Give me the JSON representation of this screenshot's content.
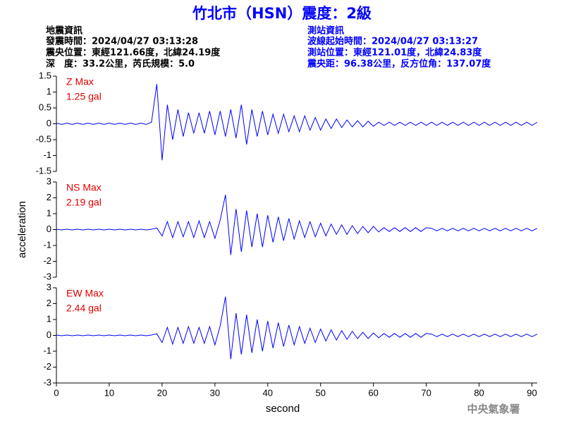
{
  "header": {
    "title": "竹北市（HSN）震度：2級",
    "left": [
      "地震資訊",
      "發震時間：2024/04/27 03:13:28",
      "震央位置：東經121.66度，北緯24.19度",
      "深　度：33.2公里，芮氏規模：5.0"
    ],
    "right": [
      "測站資訊",
      "波線起始時間：2024/04/27 03:13:27",
      "測站位置：東經121.01度，北緯24.83度",
      "震央距：96.38公里，反方位角：137.07度"
    ],
    "footer": "中央氣象署"
  },
  "chart_data": [
    {
      "type": "line",
      "annotation": [
        "Z Max",
        "1.25 gal"
      ],
      "color": "#0000ff",
      "x": [
        0,
        1,
        2,
        3,
        4,
        5,
        6,
        7,
        8,
        9,
        10,
        11,
        12,
        13,
        14,
        15,
        16,
        17,
        18,
        19,
        20,
        21,
        22,
        23,
        24,
        25,
        26,
        27,
        28,
        29,
        30,
        31,
        32,
        33,
        34,
        35,
        36,
        37,
        38,
        39,
        40,
        41,
        42,
        43,
        44,
        45,
        46,
        47,
        48,
        49,
        50,
        51,
        52,
        53,
        54,
        55,
        56,
        57,
        58,
        59,
        60,
        61,
        62,
        63,
        64,
        65,
        66,
        67,
        68,
        69,
        70,
        71,
        72,
        73,
        74,
        75,
        76,
        77,
        78,
        79,
        80,
        81,
        82,
        83,
        84,
        85,
        86,
        87,
        88,
        89,
        90,
        91
      ],
      "values": [
        0.02,
        -0.02,
        0.02,
        -0.02,
        0.02,
        -0.02,
        0.02,
        -0.02,
        0.02,
        -0.02,
        0.02,
        -0.02,
        0.02,
        -0.02,
        0.02,
        -0.02,
        0.02,
        -0.02,
        0.05,
        1.25,
        -1.15,
        0.6,
        -0.5,
        0.45,
        -0.4,
        0.35,
        -0.3,
        0.35,
        -0.3,
        0.4,
        -0.35,
        0.4,
        -0.4,
        0.45,
        -0.45,
        0.6,
        -0.65,
        0.45,
        -0.4,
        0.4,
        -0.35,
        0.3,
        -0.3,
        0.3,
        -0.25,
        0.25,
        -0.25,
        0.25,
        -0.2,
        0.2,
        -0.2,
        0.15,
        -0.15,
        0.15,
        -0.12,
        0.12,
        -0.1,
        0.1,
        -0.1,
        0.08,
        -0.08,
        0.05,
        -0.05,
        0.05,
        -0.05,
        0.05,
        -0.05,
        0.05,
        -0.05,
        0.05,
        -0.05,
        0.05,
        -0.05,
        0.05,
        -0.05,
        0.05,
        -0.05,
        0.05,
        -0.05,
        0.05,
        -0.05,
        0.05,
        -0.05,
        0.05,
        -0.05,
        0.05,
        -0.05,
        0.05,
        -0.05,
        0.05,
        -0.05,
        0.05
      ],
      "xlim": [
        0,
        91
      ],
      "ylim": [
        -1.5,
        1.5
      ],
      "yticks": [
        -1.5,
        -1,
        -0.5,
        0,
        0.5,
        1,
        1.5
      ]
    },
    {
      "type": "line",
      "annotation": [
        "NS Max",
        "2.19 gal"
      ],
      "color": "#0000ff",
      "ylabel": "acceleration",
      "x": [
        0,
        1,
        2,
        3,
        4,
        5,
        6,
        7,
        8,
        9,
        10,
        11,
        12,
        13,
        14,
        15,
        16,
        17,
        18,
        19,
        20,
        21,
        22,
        23,
        24,
        25,
        26,
        27,
        28,
        29,
        30,
        31,
        32,
        33,
        34,
        35,
        36,
        37,
        38,
        39,
        40,
        41,
        42,
        43,
        44,
        45,
        46,
        47,
        48,
        49,
        50,
        51,
        52,
        53,
        54,
        55,
        56,
        57,
        58,
        59,
        60,
        61,
        62,
        63,
        64,
        65,
        66,
        67,
        68,
        69,
        70,
        71,
        72,
        73,
        74,
        75,
        76,
        77,
        78,
        79,
        80,
        81,
        82,
        83,
        84,
        85,
        86,
        87,
        88,
        89,
        90,
        91
      ],
      "values": [
        0.02,
        -0.02,
        0.02,
        -0.02,
        0.02,
        -0.02,
        0.02,
        -0.02,
        0.02,
        -0.02,
        0.02,
        -0.02,
        0.02,
        -0.02,
        0.02,
        -0.02,
        0.02,
        -0.02,
        0.02,
        0.1,
        -0.4,
        0.5,
        -0.5,
        0.5,
        -0.45,
        0.5,
        -0.5,
        0.55,
        -0.5,
        0.5,
        -0.55,
        0.6,
        2.19,
        -1.6,
        1.3,
        -1.4,
        1.2,
        -1.1,
        1.0,
        -1.1,
        0.9,
        -0.8,
        0.8,
        -0.7,
        0.7,
        -0.6,
        0.55,
        -0.5,
        0.5,
        -0.45,
        0.4,
        -0.4,
        0.35,
        -0.3,
        0.3,
        -0.3,
        0.25,
        -0.25,
        0.2,
        -0.2,
        0.2,
        -0.15,
        0.12,
        -0.12,
        0.12,
        -0.12,
        0.12,
        -0.12,
        0.12,
        -0.12,
        0.12,
        0.08,
        -0.08,
        0.08,
        -0.08,
        0.08,
        -0.08,
        0.08,
        -0.08,
        0.08,
        -0.08,
        0.08,
        -0.08,
        0.08,
        -0.08,
        0.08,
        -0.08,
        0.08,
        -0.08,
        0.08,
        -0.08,
        0.08
      ],
      "xlim": [
        0,
        91
      ],
      "ylim": [
        -3,
        3
      ],
      "yticks": [
        -3,
        -2,
        -1,
        0,
        1,
        2,
        3
      ]
    },
    {
      "type": "line",
      "annotation": [
        "EW Max",
        "2.44 gal"
      ],
      "color": "#0000ff",
      "xlabel": "second",
      "x": [
        0,
        1,
        2,
        3,
        4,
        5,
        6,
        7,
        8,
        9,
        10,
        11,
        12,
        13,
        14,
        15,
        16,
        17,
        18,
        19,
        20,
        21,
        22,
        23,
        24,
        25,
        26,
        27,
        28,
        29,
        30,
        31,
        32,
        33,
        34,
        35,
        36,
        37,
        38,
        39,
        40,
        41,
        42,
        43,
        44,
        45,
        46,
        47,
        48,
        49,
        50,
        51,
        52,
        53,
        54,
        55,
        56,
        57,
        58,
        59,
        60,
        61,
        62,
        63,
        64,
        65,
        66,
        67,
        68,
        69,
        70,
        71,
        72,
        73,
        74,
        75,
        76,
        77,
        78,
        79,
        80,
        81,
        82,
        83,
        84,
        85,
        86,
        87,
        88,
        89,
        90,
        91
      ],
      "values": [
        0.02,
        -0.02,
        0.02,
        -0.02,
        0.02,
        -0.02,
        0.02,
        -0.02,
        0.02,
        -0.02,
        0.02,
        -0.02,
        0.02,
        -0.02,
        0.02,
        -0.02,
        0.02,
        -0.02,
        0.02,
        0.1,
        -0.45,
        0.5,
        -0.55,
        0.5,
        -0.5,
        0.55,
        -0.5,
        0.5,
        -0.5,
        0.55,
        -0.6,
        0.6,
        2.44,
        -1.5,
        1.4,
        -1.2,
        1.3,
        -1.1,
        1.0,
        -1.0,
        0.9,
        -0.8,
        0.8,
        -0.7,
        0.65,
        -0.6,
        0.55,
        -0.5,
        0.45,
        -0.45,
        0.4,
        -0.35,
        0.35,
        -0.3,
        0.3,
        -0.25,
        0.25,
        -0.2,
        0.2,
        -0.2,
        0.15,
        -0.15,
        0.12,
        -0.12,
        0.12,
        -0.12,
        0.12,
        -0.12,
        0.12,
        -0.12,
        0.12,
        0.08,
        -0.08,
        0.08,
        -0.08,
        0.08,
        -0.08,
        0.08,
        -0.08,
        0.08,
        -0.08,
        0.08,
        -0.08,
        0.08,
        -0.08,
        0.08,
        -0.08,
        0.08,
        -0.08,
        0.08,
        -0.08,
        0.08
      ],
      "xlim": [
        0,
        91
      ],
      "ylim": [
        -3,
        3
      ],
      "yticks": [
        -3,
        -2,
        -1,
        0,
        1,
        2,
        3
      ],
      "xticks": [
        0,
        10,
        20,
        30,
        40,
        50,
        60,
        70,
        80,
        90
      ]
    }
  ]
}
